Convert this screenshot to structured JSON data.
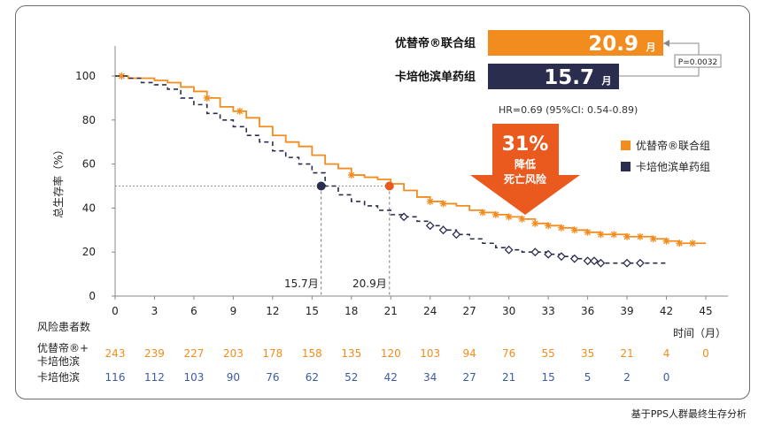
{
  "chart_data": {
    "type": "line",
    "ylabel": "总生存率（%）",
    "xlabel": "时间（月）",
    "xlim": [
      0,
      45
    ],
    "ylim": [
      0,
      100
    ],
    "x_ticks": [
      "0",
      "3",
      "6",
      "9",
      "12",
      "15",
      "18",
      "21",
      "24",
      "27",
      "30",
      "33",
      "36",
      "39",
      "42",
      "45"
    ],
    "y_ticks": [
      "0",
      "20",
      "40",
      "60",
      "80",
      "100"
    ],
    "series": [
      {
        "name": "优替帝®联合组",
        "color": "#f28c1e",
        "median": 20.9,
        "x": [
          0,
          0.5,
          1,
          2,
          3,
          4,
          5,
          6,
          7,
          8,
          9,
          10,
          11,
          12,
          13,
          14,
          15,
          16,
          17,
          18,
          19,
          20,
          21,
          22,
          23,
          24,
          25,
          26,
          27,
          28,
          29,
          30,
          31,
          32,
          33,
          34,
          35,
          36,
          37,
          38,
          39,
          40,
          41,
          42,
          43,
          44,
          45
        ],
        "y": [
          100,
          100,
          99,
          99,
          98,
          97,
          95,
          93,
          90,
          86,
          84,
          81,
          77,
          73,
          70,
          68,
          64,
          60,
          58,
          55,
          54,
          53,
          51,
          48,
          45,
          43,
          42,
          41,
          39,
          38,
          37,
          36,
          35,
          33,
          32,
          31,
          30,
          29,
          28,
          28,
          27,
          27,
          26,
          25,
          24,
          24,
          24
        ],
        "censor_x": [
          0.5,
          7,
          9.5,
          18,
          24,
          25,
          28,
          29,
          30,
          31,
          32,
          33,
          34,
          35,
          36,
          37,
          38,
          39,
          40,
          41,
          42,
          43,
          44
        ]
      },
      {
        "name": "卡培他滨单药组",
        "color": "#2b2d4e",
        "median": 15.7,
        "x": [
          0,
          1,
          2,
          3,
          4,
          5,
          6,
          7,
          8,
          9,
          10,
          11,
          12,
          13,
          14,
          15,
          16,
          17,
          18,
          19,
          20,
          21,
          22,
          23,
          24,
          25,
          26,
          27,
          28,
          29,
          30,
          31,
          32,
          33,
          34,
          35,
          36,
          37,
          38,
          39,
          40,
          41,
          42
        ],
        "y": [
          100,
          99,
          97,
          96,
          94,
          90,
          87,
          83,
          80,
          77,
          73,
          70,
          66,
          63,
          60,
          56,
          50,
          46,
          43,
          41,
          39,
          37,
          36,
          34,
          32,
          30,
          28,
          26,
          24,
          22,
          21,
          20,
          20,
          19,
          18,
          17,
          16,
          15,
          15,
          15,
          15,
          15,
          15
        ],
        "censor_x": [
          22,
          24,
          25,
          26,
          30,
          32,
          33,
          34,
          35,
          36,
          36.5,
          37,
          39,
          40
        ]
      }
    ],
    "hr_text": "HR=0.69  (95%CI: 0.54-0.89)",
    "p_value": "P=0.0032",
    "risk_reduction": {
      "pct": "31%",
      "line1": "降低",
      "line2": "死亡风险"
    },
    "median_bars": [
      {
        "label": "优替帝®联合组",
        "value": "20.9",
        "unit": "月",
        "color": "#f28c1e"
      },
      {
        "label": "卡培他滨单药组",
        "value": "15.7",
        "unit": "月",
        "color": "#2b2d4e"
      }
    ],
    "median_labels": [
      "15.7月",
      "20.9月"
    ],
    "legend": [
      "优替帝®联合组",
      "卡培他滨单药组"
    ],
    "risk_table": {
      "title": "风险患者数",
      "rows": [
        {
          "label_line1": "优替帝®+",
          "label_line2": "卡培他滨",
          "color": "#f28c1e",
          "values": [
            "243",
            "239",
            "227",
            "203",
            "178",
            "158",
            "135",
            "120",
            "103",
            "94",
            "76",
            "55",
            "35",
            "21",
            "4",
            "0"
          ]
        },
        {
          "label_line1": "卡培他滨",
          "label_line2": "",
          "color": "#3c5aa0",
          "values": [
            "116",
            "112",
            "103",
            "90",
            "76",
            "62",
            "52",
            "42",
            "34",
            "27",
            "21",
            "15",
            "5",
            "2",
            "0"
          ]
        }
      ]
    }
  },
  "footnote": "基于PPS人群最终生存分析"
}
